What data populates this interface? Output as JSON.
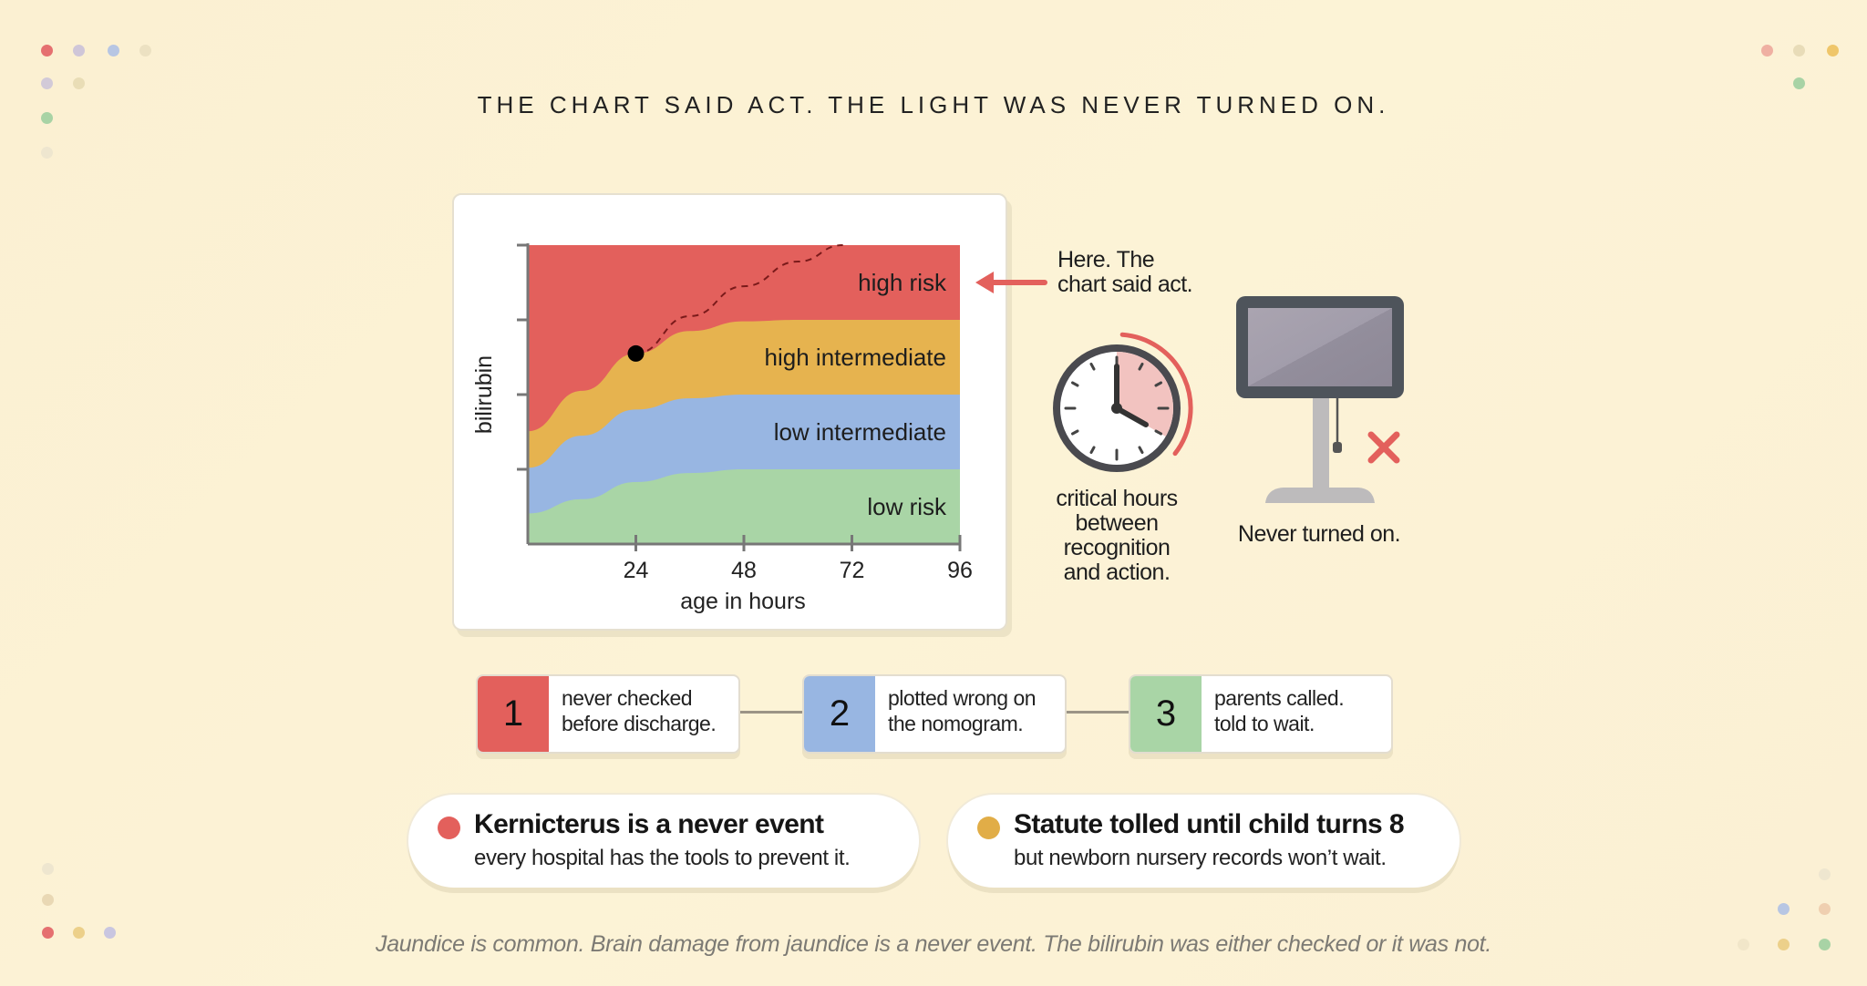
{
  "title": "THE CHART SAID ACT. THE LIGHT WAS NEVER TURNED ON.",
  "chart_data": {
    "type": "area",
    "title": "",
    "xlabel": "age in hours",
    "ylabel": "bilirubin",
    "xlim": [
      0,
      96
    ],
    "ylim": [
      0,
      4
    ],
    "x_ticks": [
      24,
      48,
      72,
      96
    ],
    "y_ticks": [
      1,
      2,
      3,
      4
    ],
    "boundary_x": [
      0,
      12,
      24,
      36,
      48,
      60,
      72,
      84,
      96
    ],
    "bands": [
      {
        "name": "low risk",
        "color": "#a9d5a6",
        "upper": [
          0.41,
          0.6,
          0.83,
          0.95,
          1.0,
          1.0,
          1.0,
          1.0,
          1.0
        ]
      },
      {
        "name": "low intermediate",
        "color": "#98b6e2",
        "upper": [
          1.02,
          1.45,
          1.8,
          1.95,
          2.0,
          2.0,
          2.0,
          2.0,
          2.0
        ]
      },
      {
        "name": "high intermediate",
        "color": "#e6b34f",
        "upper": [
          1.51,
          2.05,
          2.55,
          2.85,
          2.98,
          3.0,
          3.0,
          3.0,
          3.0
        ]
      },
      {
        "name": "high risk",
        "color": "#e3605c",
        "upper": [
          4,
          4,
          4,
          4,
          4,
          4,
          4,
          4,
          4
        ]
      }
    ],
    "point": {
      "x": 24,
      "y": 2.55
    },
    "trajectory": {
      "x": [
        24,
        36,
        48,
        60,
        70
      ],
      "y": [
        2.55,
        3.05,
        3.45,
        3.78,
        4.0
      ]
    }
  },
  "annotation": {
    "line1": "Here. The",
    "line2": "chart said act."
  },
  "clock_caption": [
    "critical hours",
    "between",
    "recognition",
    "and action."
  ],
  "monitor_caption": "Never turned on.",
  "steps": [
    {
      "num": "1",
      "line1": "never checked",
      "line2": "before discharge.",
      "color": "#e3605c"
    },
    {
      "num": "2",
      "line1": "plotted wrong on",
      "line2": "the nomogram.",
      "color": "#98b6e2"
    },
    {
      "num": "3",
      "line1": "parents called.",
      "line2": "told to wait.",
      "color": "#a9d5a6"
    }
  ],
  "callouts": [
    {
      "heading": "Kernicterus is a never event",
      "sub": "every hospital has the tools to prevent it.",
      "color": "#e3605c"
    },
    {
      "heading": "Statute tolled until child turns 8",
      "sub": "but newborn nursery records won’t wait.",
      "color": "#e1ad47"
    }
  ],
  "footer": "Jaundice is common. Brain damage from jaundice is a never event. The bilirubin was either checked or it was not."
}
